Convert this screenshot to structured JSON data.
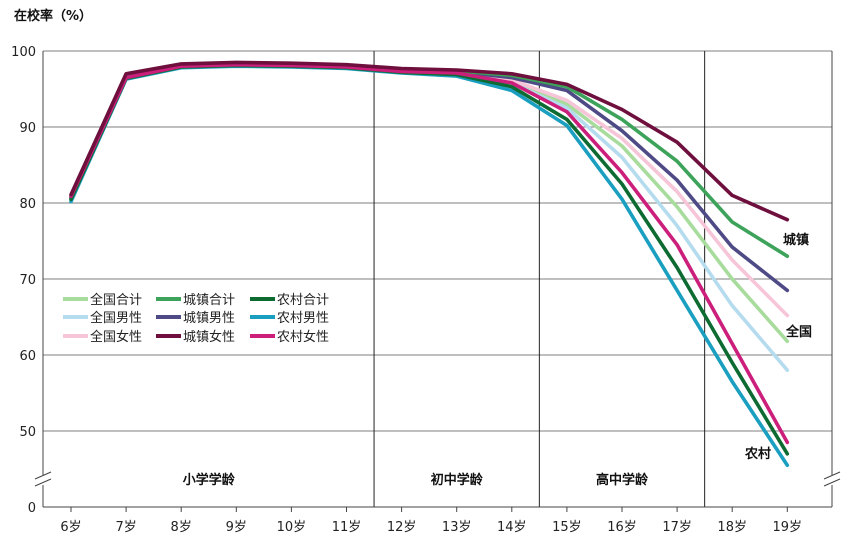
{
  "chart_data": {
    "type": "line",
    "title": "在校率（%）",
    "categories": [
      "6岁",
      "7岁",
      "8岁",
      "9岁",
      "10岁",
      "11岁",
      "12岁",
      "13岁",
      "14岁",
      "15岁",
      "16岁",
      "17岁",
      "18岁",
      "19岁"
    ],
    "y_ticks": [
      {
        "label": "100",
        "value": 100
      },
      {
        "label": "90",
        "value": 90
      },
      {
        "label": "80",
        "value": 80
      },
      {
        "label": "70",
        "value": 70
      },
      {
        "label": "60",
        "value": 60
      },
      {
        "label": "50",
        "value": 50
      },
      {
        "label": "0",
        "value": 0
      }
    ],
    "ylim": [
      45,
      100
    ],
    "axis_break": true,
    "bands": [
      {
        "label": "小学学龄",
        "from": 0,
        "to": 5
      },
      {
        "label": "初中学龄",
        "from": 6,
        "to": 8
      },
      {
        "label": "高中学龄",
        "from": 9,
        "to": 11
      }
    ],
    "series": [
      {
        "name": "全国合计",
        "color": "#a8dc9c",
        "values": [
          80.6,
          96.6,
          98.0,
          98.2,
          98.1,
          97.9,
          97.4,
          97.1,
          96.0,
          93.0,
          87.5,
          79.5,
          70.0,
          61.8
        ]
      },
      {
        "name": "全国男性",
        "color": "#b5dcee",
        "values": [
          80.4,
          96.5,
          98.0,
          98.2,
          98.1,
          97.9,
          97.3,
          97.0,
          95.8,
          92.5,
          86.0,
          77.0,
          66.5,
          58.0
        ]
      },
      {
        "name": "全国女性",
        "color": "#f6c5d8",
        "values": [
          80.8,
          96.7,
          98.1,
          98.3,
          98.2,
          98.0,
          97.4,
          97.2,
          96.2,
          93.5,
          88.5,
          81.5,
          72.5,
          65.2
        ]
      },
      {
        "name": "城镇合计",
        "color": "#3da35a",
        "values": [
          80.9,
          96.9,
          98.2,
          98.4,
          98.3,
          98.1,
          97.6,
          97.4,
          96.8,
          95.3,
          91.0,
          85.5,
          77.5,
          73.0
        ]
      },
      {
        "name": "城镇男性",
        "color": "#4e4a86",
        "values": [
          80.7,
          96.8,
          98.1,
          98.3,
          98.2,
          98.0,
          97.5,
          97.3,
          96.5,
          94.8,
          89.5,
          83.0,
          74.2,
          68.5
        ]
      },
      {
        "name": "城镇女性",
        "color": "#6e0f3e",
        "values": [
          81.1,
          97.0,
          98.3,
          98.5,
          98.4,
          98.2,
          97.7,
          97.5,
          97.0,
          95.6,
          92.3,
          88.0,
          81.0,
          77.8
        ]
      },
      {
        "name": "农村合计",
        "color": "#0d6b32",
        "values": [
          80.5,
          96.4,
          97.9,
          98.1,
          98.0,
          97.8,
          97.2,
          96.9,
          95.3,
          91.0,
          82.5,
          71.5,
          59.0,
          47.0
        ]
      },
      {
        "name": "农村男性",
        "color": "#1a9fc0",
        "values": [
          80.2,
          96.3,
          97.8,
          98.0,
          97.9,
          97.7,
          97.1,
          96.7,
          94.8,
          90.2,
          80.5,
          68.5,
          56.5,
          45.5
        ]
      },
      {
        "name": "农村女性",
        "color": "#cc1f7c",
        "values": [
          80.9,
          96.5,
          98.0,
          98.2,
          98.1,
          97.9,
          97.3,
          97.1,
          95.8,
          92.0,
          84.0,
          74.5,
          61.5,
          48.5
        ]
      }
    ],
    "annotations": [
      {
        "label": "城镇",
        "series": "城镇合计"
      },
      {
        "label": "全国",
        "series": "全国合计"
      },
      {
        "label": "农村",
        "series": "农村合计"
      }
    ]
  }
}
